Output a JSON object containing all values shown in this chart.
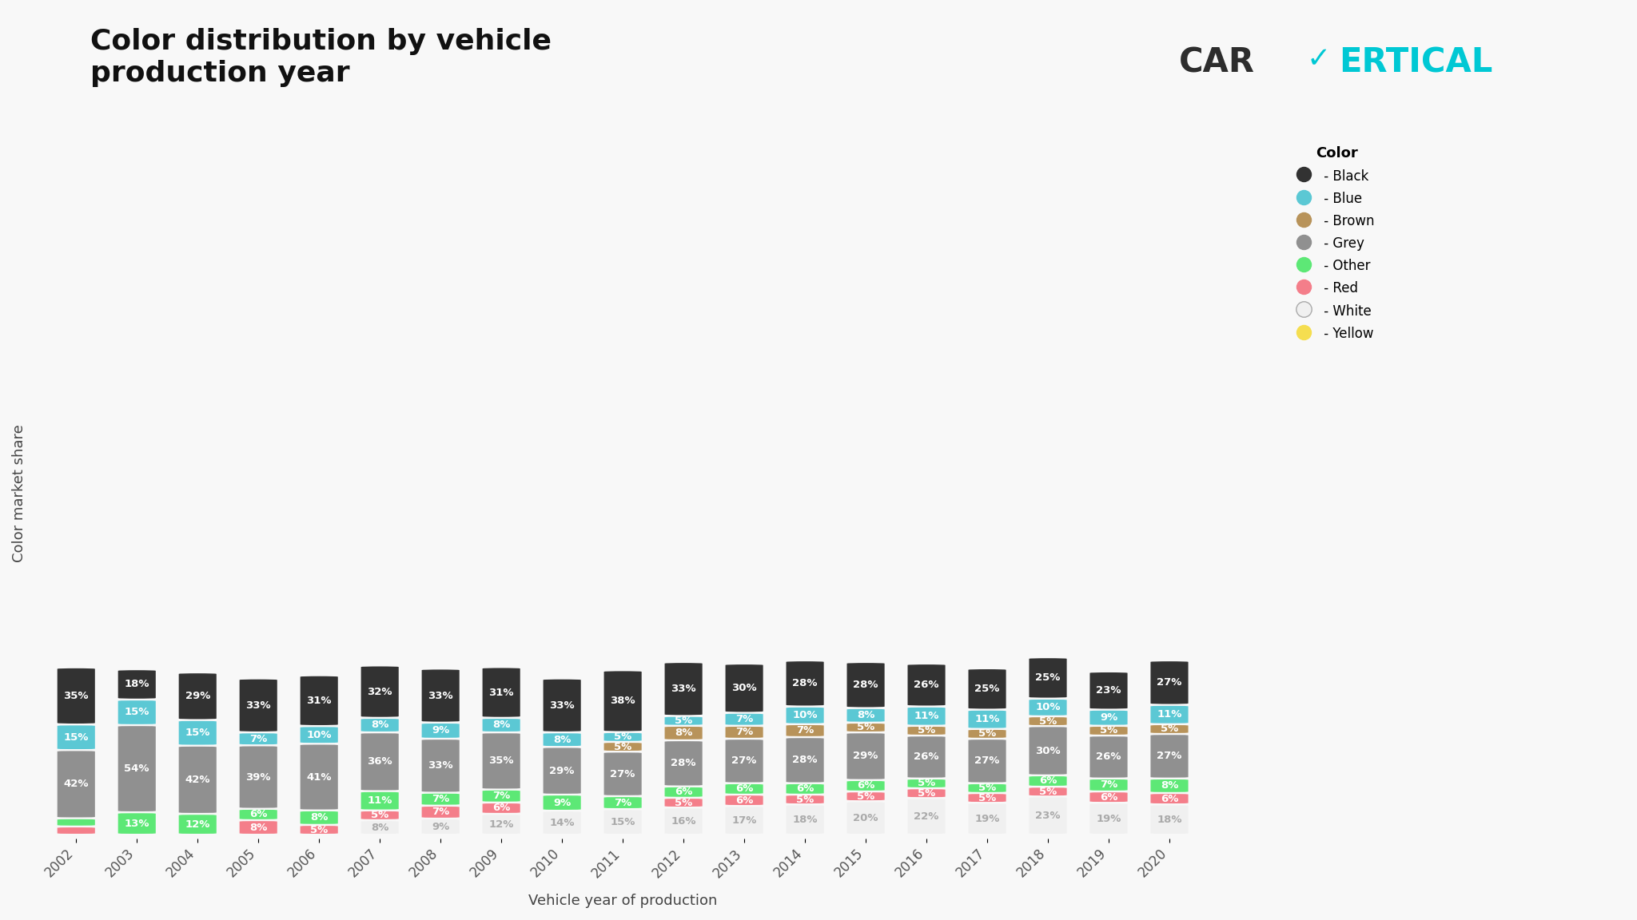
{
  "years": [
    2002,
    2003,
    2004,
    2005,
    2006,
    2007,
    2008,
    2009,
    2010,
    2011,
    2012,
    2013,
    2014,
    2015,
    2016,
    2017,
    2018,
    2019,
    2020
  ],
  "colors_hex": {
    "Black": "#323232",
    "Blue": "#5bc8d4",
    "Brown": "#b8935a",
    "Grey": "#909090",
    "Other": "#5de876",
    "Red": "#f47e8a",
    "White": "#f0f0f0",
    "Yellow": "#f5de50"
  },
  "stack_order": [
    "Yellow",
    "White",
    "Red",
    "Other",
    "Grey",
    "Brown",
    "Blue",
    "Black"
  ],
  "year_data": {
    "2002": {
      "Yellow": 0,
      "White": 0,
      "Red": 4,
      "Other": 4,
      "Grey": 42,
      "Brown": 0,
      "Blue": 15,
      "Black": 35
    },
    "2003": {
      "Yellow": 0,
      "White": 0,
      "Red": 0,
      "Other": 13,
      "Grey": 54,
      "Brown": 0,
      "Blue": 15,
      "Black": 18
    },
    "2004": {
      "Yellow": 0,
      "White": 0,
      "Red": 0,
      "Other": 12,
      "Grey": 42,
      "Brown": 0,
      "Blue": 15,
      "Black": 29
    },
    "2005": {
      "Yellow": 0,
      "White": 0,
      "Red": 8,
      "Other": 6,
      "Grey": 39,
      "Brown": 0,
      "Blue": 7,
      "Black": 33
    },
    "2006": {
      "Yellow": 0,
      "White": 0,
      "Red": 5,
      "Other": 8,
      "Grey": 41,
      "Brown": 0,
      "Blue": 10,
      "Black": 31
    },
    "2007": {
      "Yellow": 0,
      "White": 8,
      "Red": 5,
      "Other": 11,
      "Grey": 36,
      "Brown": 0,
      "Blue": 8,
      "Black": 32
    },
    "2008": {
      "Yellow": 0,
      "White": 9,
      "Red": 7,
      "Other": 7,
      "Grey": 33,
      "Brown": 0,
      "Blue": 9,
      "Black": 33
    },
    "2009": {
      "Yellow": 0,
      "White": 12,
      "Red": 6,
      "Other": 7,
      "Grey": 35,
      "Brown": 0,
      "Blue": 8,
      "Black": 31
    },
    "2010": {
      "Yellow": 0,
      "White": 14,
      "Red": 0,
      "Other": 9,
      "Grey": 29,
      "Brown": 0,
      "Blue": 8,
      "Black": 33
    },
    "2011": {
      "Yellow": 0,
      "White": 15,
      "Red": 0,
      "Other": 7,
      "Grey": 27,
      "Brown": 5,
      "Blue": 5,
      "Black": 38
    },
    "2012": {
      "Yellow": 0,
      "White": 16,
      "Red": 5,
      "Other": 6,
      "Grey": 28,
      "Brown": 8,
      "Blue": 5,
      "Black": 33
    },
    "2013": {
      "Yellow": 0,
      "White": 17,
      "Red": 6,
      "Other": 6,
      "Grey": 27,
      "Brown": 7,
      "Blue": 7,
      "Black": 30
    },
    "2014": {
      "Yellow": 0,
      "White": 18,
      "Red": 5,
      "Other": 6,
      "Grey": 28,
      "Brown": 7,
      "Blue": 10,
      "Black": 28
    },
    "2015": {
      "Yellow": 0,
      "White": 20,
      "Red": 5,
      "Other": 6,
      "Grey": 29,
      "Brown": 5,
      "Blue": 8,
      "Black": 28
    },
    "2016": {
      "Yellow": 0,
      "White": 22,
      "Red": 5,
      "Other": 5,
      "Grey": 26,
      "Brown": 5,
      "Blue": 11,
      "Black": 26
    },
    "2017": {
      "Yellow": 0,
      "White": 19,
      "Red": 5,
      "Other": 5,
      "Grey": 27,
      "Brown": 5,
      "Blue": 11,
      "Black": 25
    },
    "2018": {
      "Yellow": 0,
      "White": 23,
      "Red": 5,
      "Other": 6,
      "Grey": 30,
      "Brown": 5,
      "Blue": 10,
      "Black": 25
    },
    "2019": {
      "Yellow": 0,
      "White": 19,
      "Red": 6,
      "Other": 7,
      "Grey": 26,
      "Brown": 5,
      "Blue": 9,
      "Black": 23
    },
    "2020": {
      "Yellow": 0,
      "White": 18,
      "Red": 6,
      "Other": 8,
      "Grey": 27,
      "Brown": 5,
      "Blue": 11,
      "Black": 27
    }
  },
  "title": "Color distribution by vehicle\nproduction year",
  "xlabel": "Vehicle year of production",
  "ylabel": "Color market share",
  "background_color": "#f5f5f5"
}
